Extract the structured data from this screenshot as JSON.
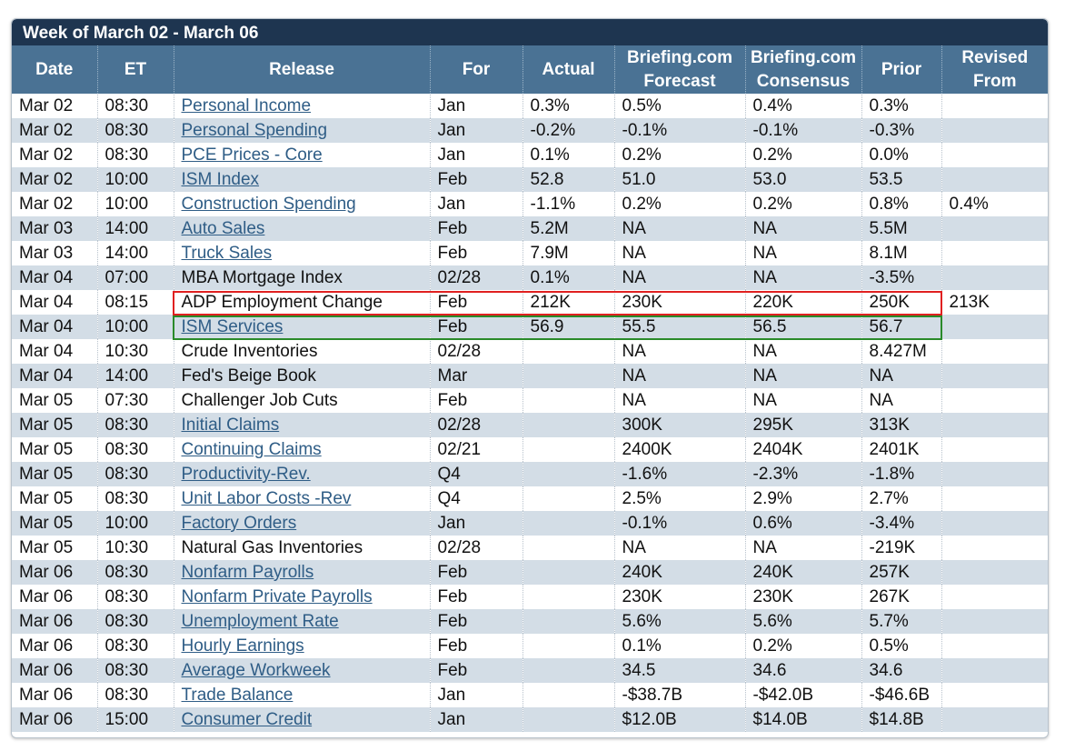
{
  "title": "Week of March 02 - March 06",
  "headers": {
    "date": "Date",
    "et": "ET",
    "release": "Release",
    "for": "For",
    "actual": "Actual",
    "forecast": "Briefing.com Forecast",
    "consensus": "Briefing.com Consensus",
    "prior": "Prior",
    "revised": "Revised From"
  },
  "highlight_colors": {
    "red": "#e02020",
    "green": "#2a8a2a"
  },
  "link_color": "#2f5d86",
  "rows": [
    {
      "date": "Mar 02",
      "et": "08:30",
      "release": "Personal Income",
      "link": true,
      "for": "Jan",
      "actual": "0.3%",
      "forecast": "0.5%",
      "consensus": "0.4%",
      "prior": "0.3%",
      "revised": ""
    },
    {
      "date": "Mar 02",
      "et": "08:30",
      "release": "Personal Spending",
      "link": true,
      "for": "Jan",
      "actual": "-0.2%",
      "forecast": "-0.1%",
      "consensus": "-0.1%",
      "prior": "-0.3%",
      "revised": ""
    },
    {
      "date": "Mar 02",
      "et": "08:30",
      "release": "PCE Prices - Core",
      "link": true,
      "for": "Jan",
      "actual": "0.1%",
      "forecast": "0.2%",
      "consensus": "0.2%",
      "prior": "0.0%",
      "revised": ""
    },
    {
      "date": "Mar 02",
      "et": "10:00",
      "release": "ISM Index",
      "link": true,
      "for": "Feb",
      "actual": "52.8",
      "forecast": "51.0",
      "consensus": "53.0",
      "prior": "53.5",
      "revised": ""
    },
    {
      "date": "Mar 02",
      "et": "10:00",
      "release": "Construction Spending",
      "link": true,
      "for": "Jan",
      "actual": "-1.1%",
      "forecast": "0.2%",
      "consensus": "0.2%",
      "prior": "0.8%",
      "revised": "0.4%"
    },
    {
      "date": "Mar 03",
      "et": "14:00",
      "release": "Auto Sales",
      "link": true,
      "for": "Feb",
      "actual": "5.2M",
      "forecast": "NA",
      "consensus": "NA",
      "prior": "5.5M",
      "revised": ""
    },
    {
      "date": "Mar 03",
      "et": "14:00",
      "release": "Truck Sales",
      "link": true,
      "for": "Feb",
      "actual": "7.9M",
      "forecast": "NA",
      "consensus": "NA",
      "prior": "8.1M",
      "revised": ""
    },
    {
      "date": "Mar 04",
      "et": "07:00",
      "release": "MBA Mortgage Index",
      "link": false,
      "for": "02/28",
      "actual": "0.1%",
      "forecast": "NA",
      "consensus": "NA",
      "prior": "-3.5%",
      "revised": ""
    },
    {
      "date": "Mar 04",
      "et": "08:15",
      "release": "ADP Employment Change",
      "link": false,
      "for": "Feb",
      "actual": "212K",
      "forecast": "230K",
      "consensus": "220K",
      "prior": "250K",
      "revised": "213K",
      "highlight": "red"
    },
    {
      "date": "Mar 04",
      "et": "10:00",
      "release": "ISM Services",
      "link": true,
      "for": "Feb",
      "actual": "56.9",
      "forecast": "55.5",
      "consensus": "56.5",
      "prior": "56.7",
      "revised": "",
      "highlight": "green"
    },
    {
      "date": "Mar 04",
      "et": "10:30",
      "release": "Crude Inventories",
      "link": false,
      "for": "02/28",
      "actual": "",
      "forecast": "NA",
      "consensus": "NA",
      "prior": "8.427M",
      "revised": ""
    },
    {
      "date": "Mar 04",
      "et": "14:00",
      "release": "Fed's Beige Book",
      "link": false,
      "for": "Mar",
      "actual": "",
      "forecast": "NA",
      "consensus": "NA",
      "prior": "NA",
      "revised": ""
    },
    {
      "date": "Mar 05",
      "et": "07:30",
      "release": "Challenger Job Cuts",
      "link": false,
      "for": "Feb",
      "actual": "",
      "forecast": "NA",
      "consensus": "NA",
      "prior": "NA",
      "revised": ""
    },
    {
      "date": "Mar 05",
      "et": "08:30",
      "release": "Initial Claims",
      "link": true,
      "for": "02/28",
      "actual": "",
      "forecast": "300K",
      "consensus": "295K",
      "prior": "313K",
      "revised": ""
    },
    {
      "date": "Mar 05",
      "et": "08:30",
      "release": "Continuing Claims",
      "link": true,
      "for": "02/21",
      "actual": "",
      "forecast": "2400K",
      "consensus": "2404K",
      "prior": "2401K",
      "revised": ""
    },
    {
      "date": "Mar 05",
      "et": "08:30",
      "release": "Productivity-Rev.",
      "link": true,
      "for": "Q4",
      "actual": "",
      "forecast": "-1.6%",
      "consensus": "-2.3%",
      "prior": "-1.8%",
      "revised": ""
    },
    {
      "date": "Mar 05",
      "et": "08:30",
      "release": "Unit Labor Costs -Rev",
      "link": true,
      "for": "Q4",
      "actual": "",
      "forecast": "2.5%",
      "consensus": "2.9%",
      "prior": "2.7%",
      "revised": ""
    },
    {
      "date": "Mar 05",
      "et": "10:00",
      "release": "Factory Orders",
      "link": true,
      "for": "Jan",
      "actual": "",
      "forecast": "-0.1%",
      "consensus": "0.6%",
      "prior": "-3.4%",
      "revised": ""
    },
    {
      "date": "Mar 05",
      "et": "10:30",
      "release": "Natural Gas Inventories",
      "link": false,
      "for": "02/28",
      "actual": "",
      "forecast": "NA",
      "consensus": "NA",
      "prior": "-219K",
      "revised": ""
    },
    {
      "date": "Mar 06",
      "et": "08:30",
      "release": "Nonfarm Payrolls",
      "link": true,
      "for": "Feb",
      "actual": "",
      "forecast": "240K",
      "consensus": "240K",
      "prior": "257K",
      "revised": ""
    },
    {
      "date": "Mar 06",
      "et": "08:30",
      "release": "Nonfarm Private Payrolls",
      "link": true,
      "for": "Feb",
      "actual": "",
      "forecast": "230K",
      "consensus": "230K",
      "prior": "267K",
      "revised": ""
    },
    {
      "date": "Mar 06",
      "et": "08:30",
      "release": "Unemployment Rate",
      "link": true,
      "for": "Feb",
      "actual": "",
      "forecast": "5.6%",
      "consensus": "5.6%",
      "prior": "5.7%",
      "revised": ""
    },
    {
      "date": "Mar 06",
      "et": "08:30",
      "release": "Hourly Earnings",
      "link": true,
      "for": "Feb",
      "actual": "",
      "forecast": "0.1%",
      "consensus": "0.2%",
      "prior": "0.5%",
      "revised": ""
    },
    {
      "date": "Mar 06",
      "et": "08:30",
      "release": "Average Workweek",
      "link": true,
      "for": "Feb",
      "actual": "",
      "forecast": "34.5",
      "consensus": "34.6",
      "prior": "34.6",
      "revised": ""
    },
    {
      "date": "Mar 06",
      "et": "08:30",
      "release": "Trade Balance",
      "link": true,
      "for": "Jan",
      "actual": "",
      "forecast": "-$38.7B",
      "consensus": "-$42.0B",
      "prior": "-$46.6B",
      "revised": ""
    },
    {
      "date": "Mar 06",
      "et": "15:00",
      "release": "Consumer Credit",
      "link": true,
      "for": "Jan",
      "actual": "",
      "forecast": "$12.0B",
      "consensus": "$14.0B",
      "prior": "$14.8B",
      "revised": ""
    }
  ]
}
